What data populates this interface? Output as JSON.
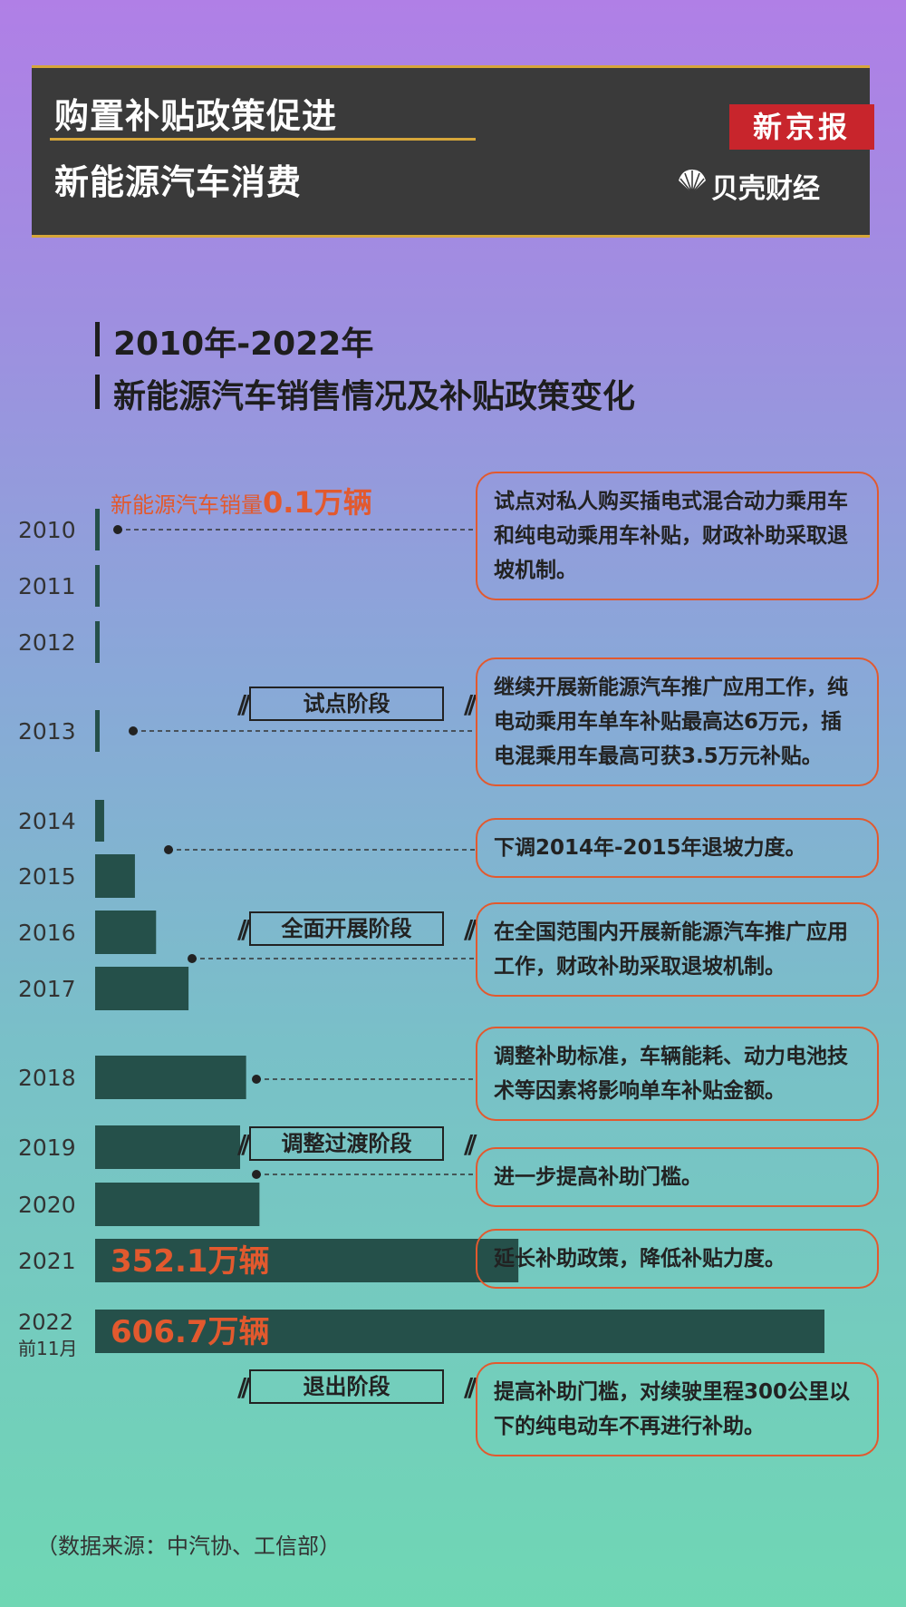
{
  "header": {
    "title_line1": "购置补贴政策促进",
    "title_line2": "新能源汽车消费",
    "brand1": "新京报",
    "brand2": "贝壳财经"
  },
  "chart_heading": {
    "line1": "2010年-2022年",
    "line2": "新能源汽车销售情况及补贴政策变化"
  },
  "chart_data": {
    "type": "bar",
    "orientation": "horizontal",
    "categories": [
      "2010",
      "2011",
      "2012",
      "2013",
      "2014",
      "2015",
      "2016",
      "2017",
      "2018",
      "2019",
      "2020",
      "2021",
      "2022前11月"
    ],
    "values": [
      0.1,
      0.5,
      1.3,
      1.8,
      7.5,
      33.1,
      50.7,
      77.7,
      125.6,
      120.6,
      136.7,
      352.1,
      606.7
    ],
    "unit": "万辆",
    "annotations": [
      {
        "category": "2010",
        "text_prefix": "新能源汽车销量",
        "text_value": "0.1万辆"
      },
      {
        "category": "2021",
        "text": "352.1万辆"
      },
      {
        "category": "2022前11月",
        "text": "606.7万辆"
      }
    ],
    "bar_color": "#25504a",
    "highlight_color": "#e2592e"
  },
  "stages": [
    "试点阶段",
    "全面开展阶段",
    "调整过渡阶段",
    "退出阶段"
  ],
  "policies": [
    {
      "year": "2010",
      "text": "试点对私人购买插电式混合动力乘用车和纯电动乘用车补贴，财政补助采取退坡机制。"
    },
    {
      "year": "2013",
      "text": "继续开展新能源汽车推广应用工作，纯电动乘用车单车补贴最高达6万元，插电混乘用车最高可获3.5万元补贴。"
    },
    {
      "year": "2015",
      "text": "下调2014年-2015年退坡力度。"
    },
    {
      "year": "2016",
      "text": "在全国范围内开展新能源汽车推广应用工作，财政补助采取退坡机制。"
    },
    {
      "year": "2018",
      "text": "调整补助标准，车辆能耗、动力电池技术等因素将影响单车补贴金额。"
    },
    {
      "year": "2019",
      "text": "进一步提高补助门槛。"
    },
    {
      "year": "2021",
      "text": "延长补助政策，降低补贴力度。"
    },
    {
      "year": "2022",
      "text": "提高补助门槛，对续驶里程300公里以下的纯电动车不再进行补助。"
    }
  ],
  "source": "（数据来源：中汽协、工信部）"
}
